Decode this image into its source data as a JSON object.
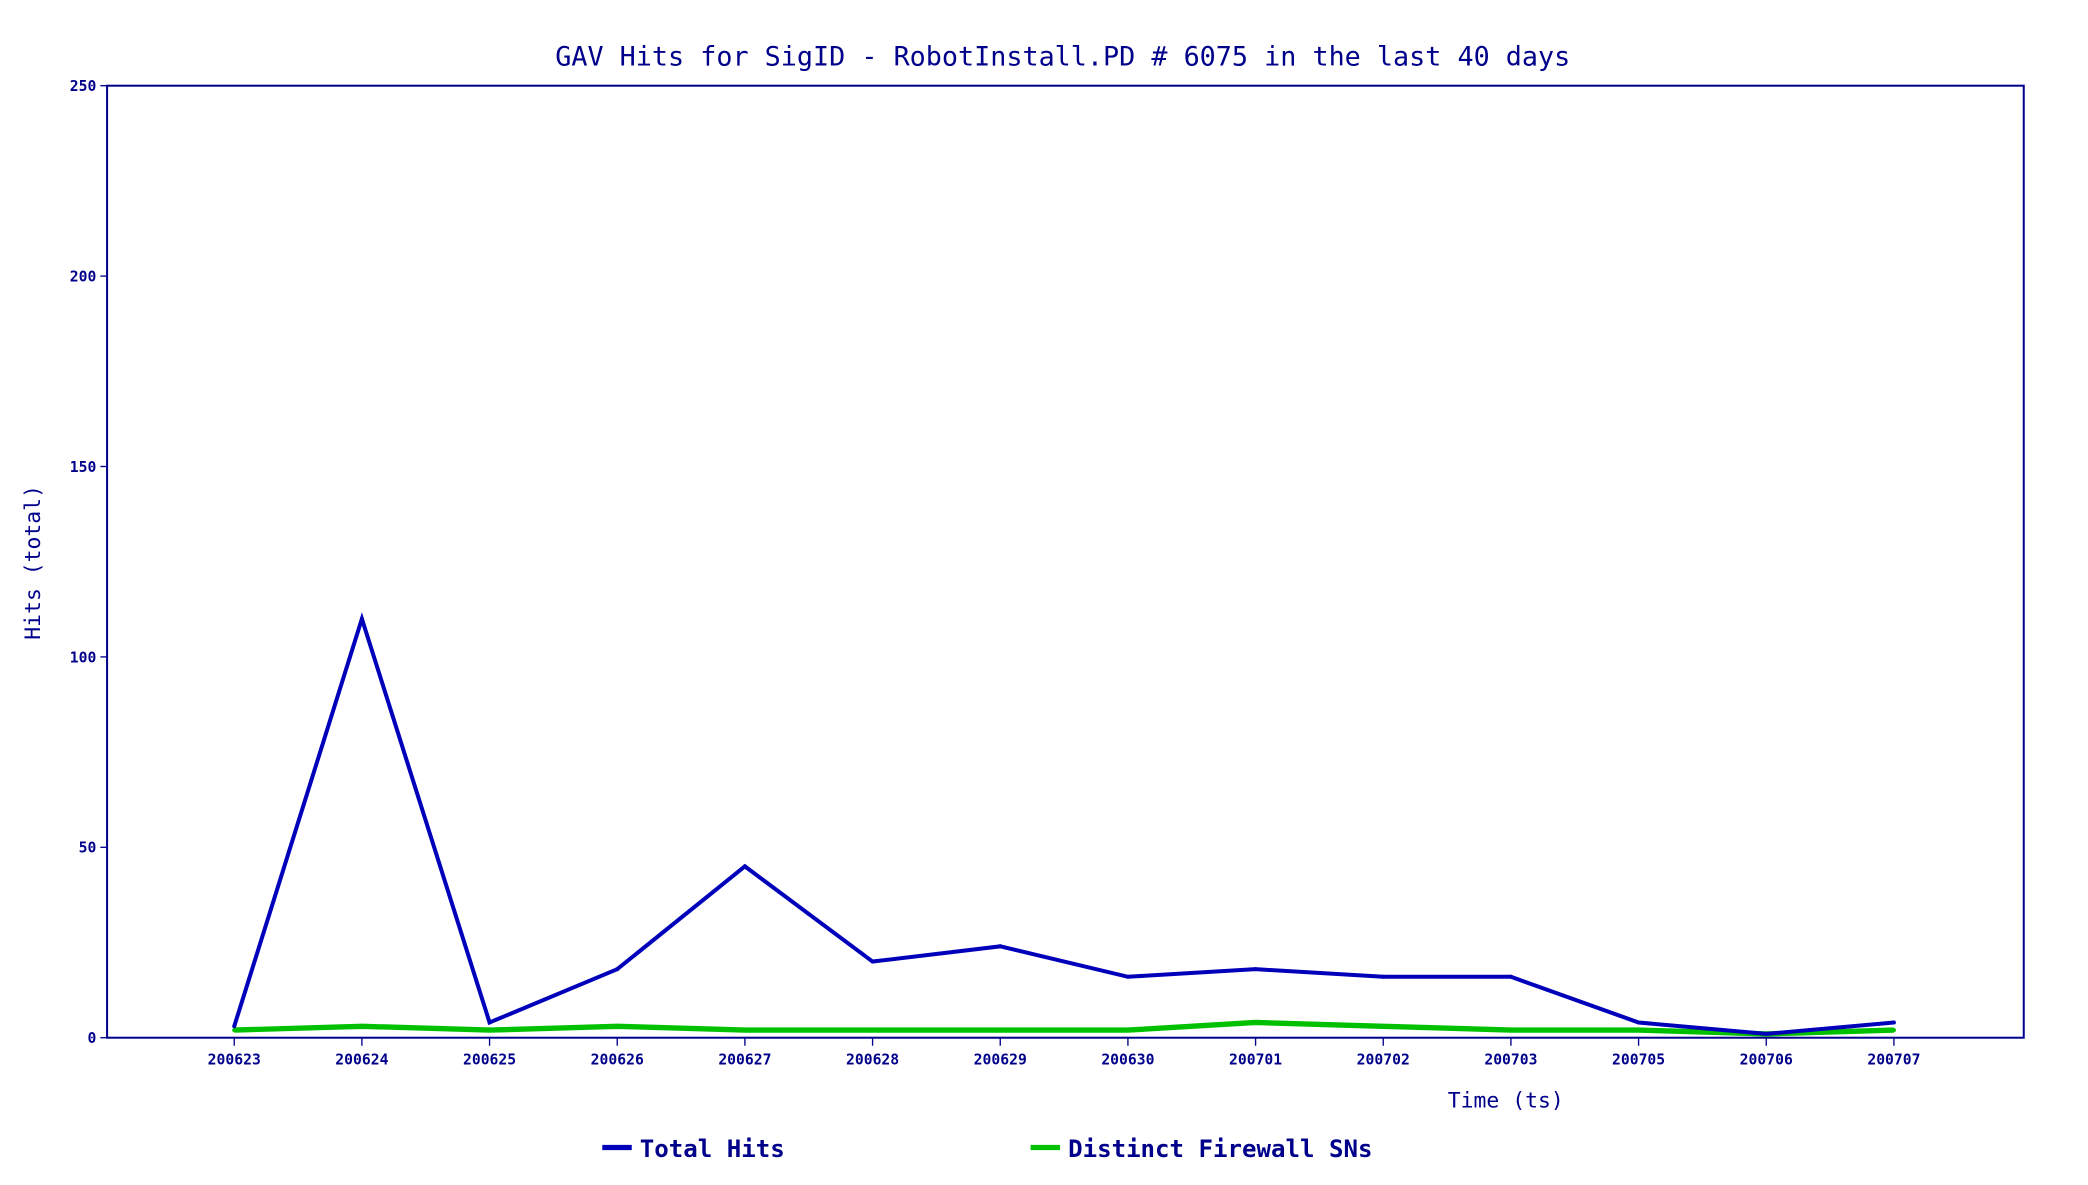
{
  "chart_data": {
    "type": "line",
    "title": "GAV Hits for SigID - RobotInstall.PD # 6075 in the last 40 days",
    "xlabel": "Time (ts)",
    "ylabel": "Hits (total)",
    "ylim": [
      0,
      250
    ],
    "yticks": [
      "0",
      "50",
      "100",
      "150",
      "200",
      "250"
    ],
    "categories": [
      "200623",
      "200624",
      "200625",
      "200626",
      "200627",
      "200628",
      "200629",
      "200630",
      "200701",
      "200702",
      "200703",
      "200705",
      "200706",
      "200707"
    ],
    "series": [
      {
        "name": "Total Hits",
        "color": "#0000bb",
        "values": [
          3,
          110,
          4,
          18,
          45,
          20,
          24,
          16,
          18,
          16,
          16,
          4,
          1,
          4
        ]
      },
      {
        "name": "Distinct Firewall SNs",
        "color": "#00c000",
        "values": [
          2,
          3,
          2,
          3,
          2,
          2,
          2,
          2,
          4,
          3,
          2,
          2,
          1,
          2
        ]
      }
    ],
    "grid": false,
    "legend": "bottom"
  }
}
